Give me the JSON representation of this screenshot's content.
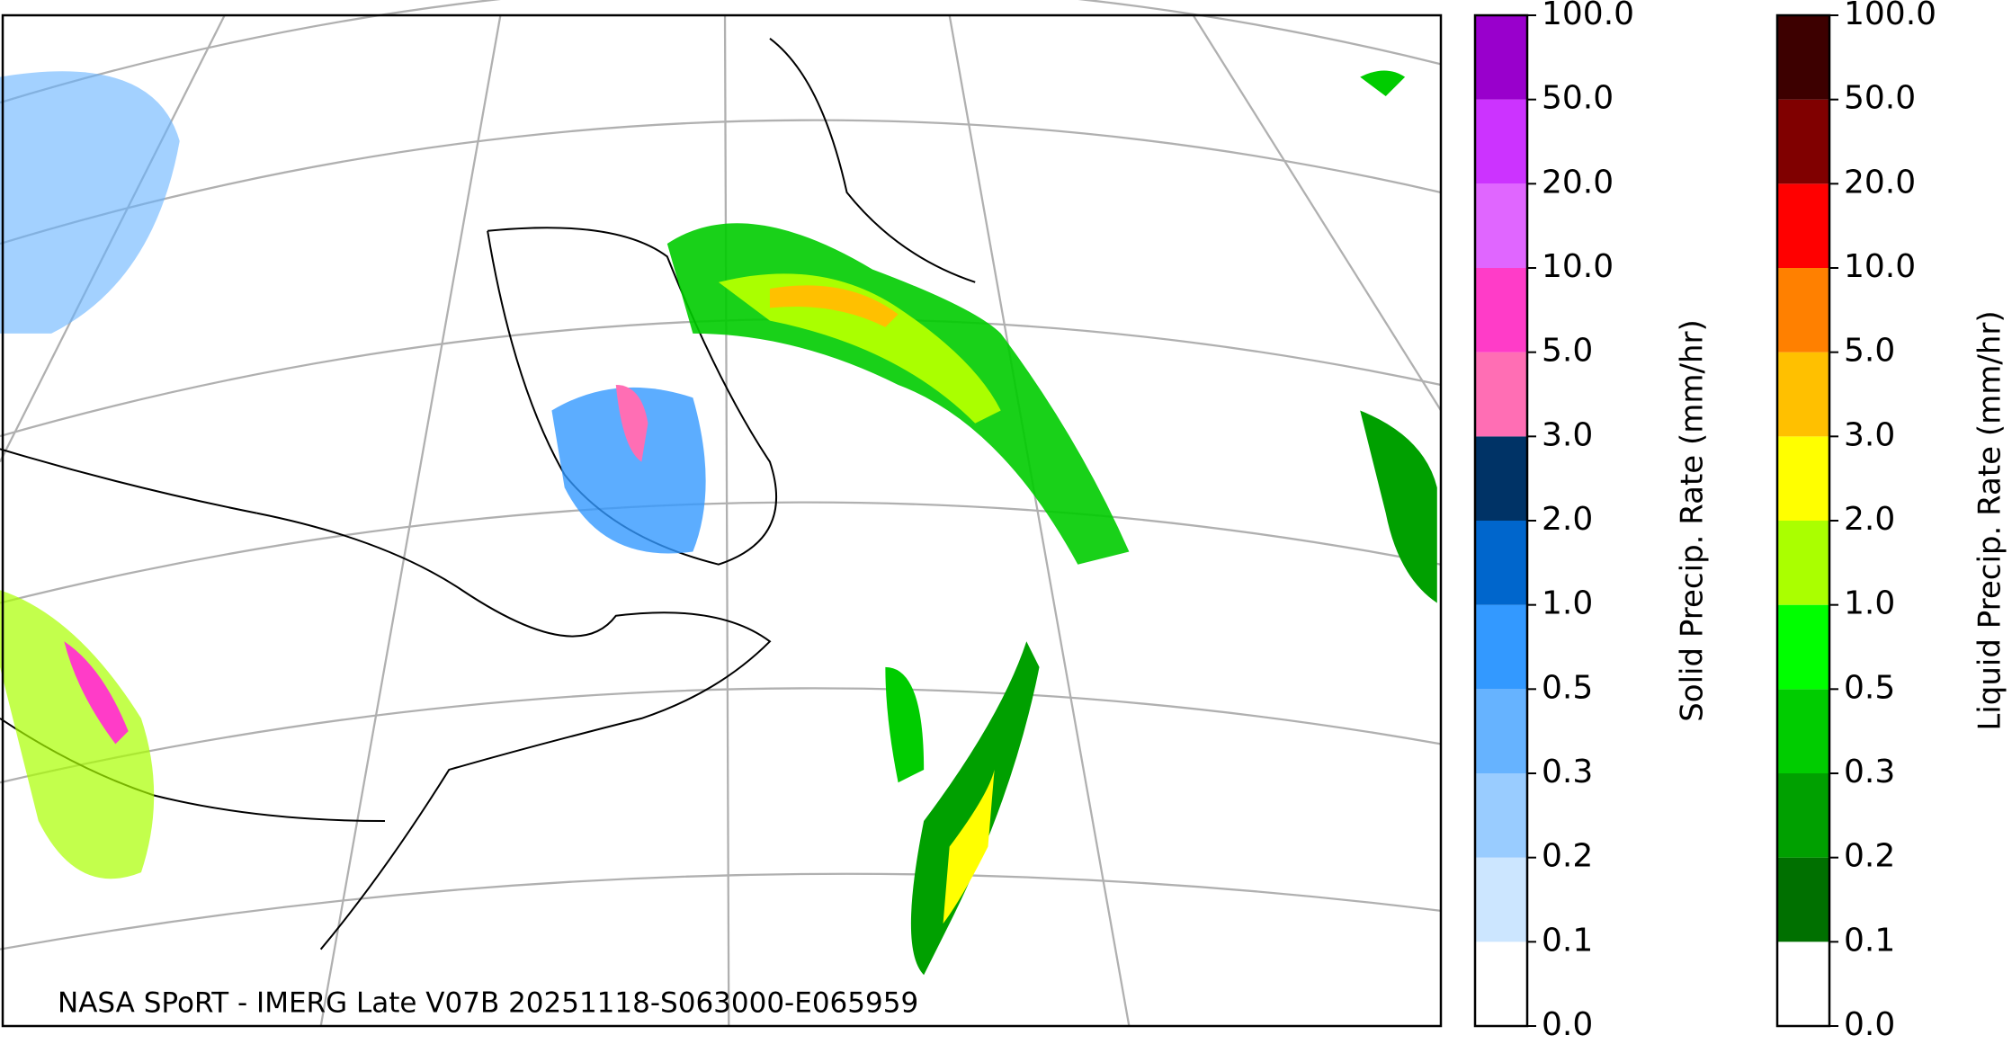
{
  "map": {
    "caption": "NASA SPoRT - IMERG Late V07B 20251118-S063000-E065959"
  },
  "colorbars": [
    {
      "label": "Solid Precip. Rate (mm/hr)",
      "ticks": [
        {
          "value": 0,
          "label": "0.0"
        },
        {
          "value": 0.1,
          "label": "0.1"
        },
        {
          "value": 0.2,
          "label": "0.2"
        },
        {
          "value": 0.3,
          "label": "0.3"
        },
        {
          "value": 0.5,
          "label": "0.5"
        },
        {
          "value": 1,
          "label": "1.0"
        },
        {
          "value": 2,
          "label": "2.0"
        },
        {
          "value": 3,
          "label": "3.0"
        },
        {
          "value": 5,
          "label": "5.0"
        },
        {
          "value": 10,
          "label": "10.0"
        },
        {
          "value": 20,
          "label": "20.0"
        },
        {
          "value": 50,
          "label": "50.0"
        },
        {
          "value": 100,
          "label": "100.0"
        }
      ],
      "colors": [
        "#ffffff",
        "#cce6ff",
        "#99ccff",
        "#66b3ff",
        "#3399ff",
        "#0066cc",
        "#003366",
        "#ff6eb4",
        "#ff3cc8",
        "#e066ff",
        "#cc33ff",
        "#9900cc"
      ]
    },
    {
      "label": "Liquid Precip. Rate (mm/hr)",
      "ticks": [
        {
          "value": 0,
          "label": "0.0"
        },
        {
          "value": 0.1,
          "label": "0.1"
        },
        {
          "value": 0.2,
          "label": "0.2"
        },
        {
          "value": 0.3,
          "label": "0.3"
        },
        {
          "value": 0.5,
          "label": "0.5"
        },
        {
          "value": 1,
          "label": "1.0"
        },
        {
          "value": 2,
          "label": "2.0"
        },
        {
          "value": 3,
          "label": "3.0"
        },
        {
          "value": 5,
          "label": "5.0"
        },
        {
          "value": 10,
          "label": "10.0"
        },
        {
          "value": 20,
          "label": "20.0"
        },
        {
          "value": 50,
          "label": "50.0"
        },
        {
          "value": 100,
          "label": "100.0"
        }
      ],
      "colors": [
        "#ffffff",
        "#004000",
        "#007000",
        "#00a000",
        "#00cc00",
        "#00ff00",
        "#aaff00",
        "#ffff00",
        "#ffc000",
        "#ff8000",
        "#ff0000",
        "#800000",
        "#3d0000"
      ]
    }
  ]
}
